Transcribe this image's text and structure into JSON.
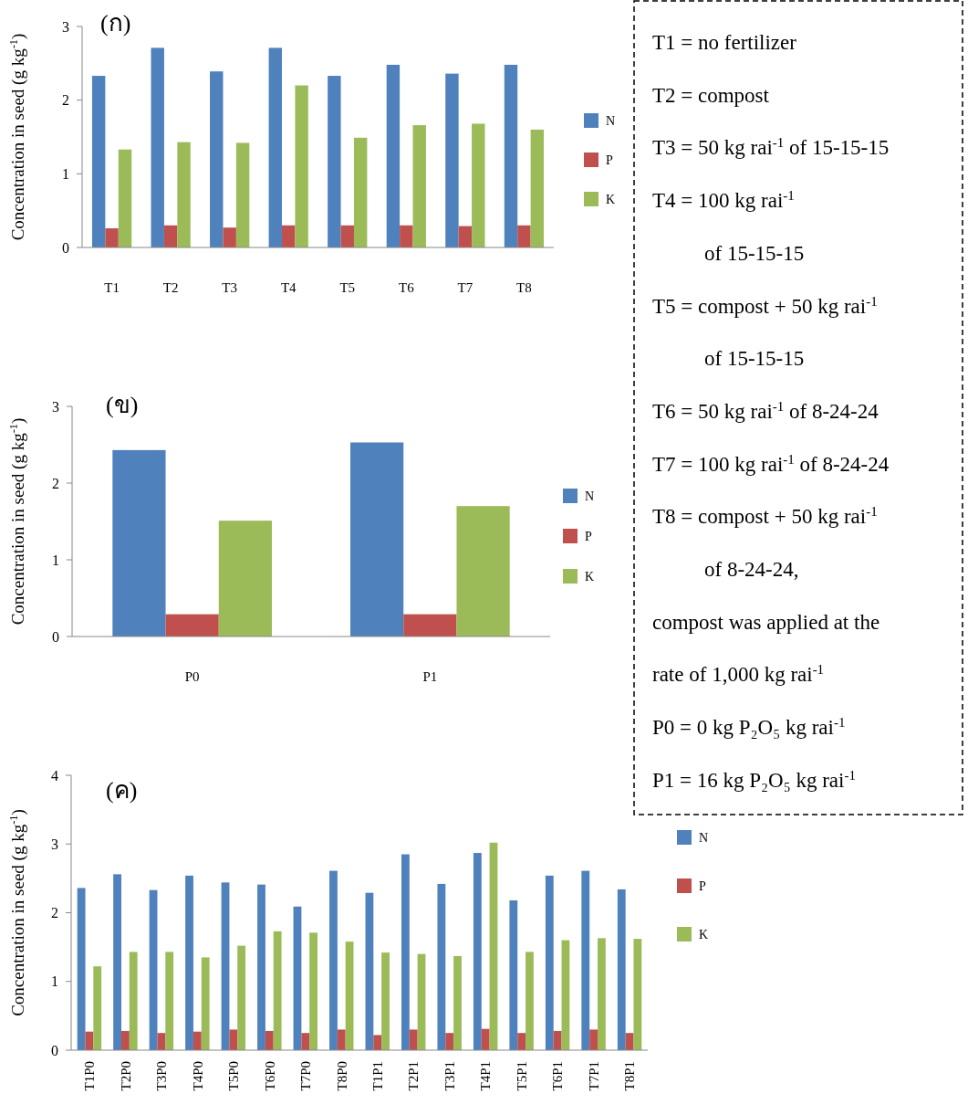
{
  "chart_data": [
    {
      "type": "bar",
      "title": "(ก)",
      "ylabel": "Concentration in seed (g kg$^{-1}$)",
      "categories": [
        "T1",
        "T2",
        "T3",
        "T4",
        "T5",
        "T6",
        "T7",
        "T8"
      ],
      "series": [
        {
          "name": "N",
          "color": "#4f81bd",
          "values": [
            2.33,
            2.71,
            2.39,
            2.71,
            2.33,
            2.48,
            2.36,
            2.48
          ]
        },
        {
          "name": "P",
          "color": "#c0504d",
          "values": [
            0.26,
            0.3,
            0.27,
            0.3,
            0.3,
            0.3,
            0.29,
            0.3
          ]
        },
        {
          "name": "K",
          "color": "#9bbb59",
          "values": [
            1.33,
            1.43,
            1.42,
            2.2,
            1.49,
            1.66,
            1.68,
            1.6
          ]
        }
      ],
      "ylim": [
        0,
        3
      ],
      "yticks": [
        0,
        1,
        2,
        3
      ],
      "grid": false,
      "legend": "right"
    },
    {
      "type": "bar",
      "title": "(ข)",
      "ylabel": "Concentration in seed (g kg$^{-1}$)",
      "categories": [
        "P0",
        "P1"
      ],
      "series": [
        {
          "name": "N",
          "color": "#4f81bd",
          "values": [
            2.43,
            2.53
          ]
        },
        {
          "name": "P",
          "color": "#c0504d",
          "values": [
            0.29,
            0.29
          ]
        },
        {
          "name": "K",
          "color": "#9bbb59",
          "values": [
            1.51,
            1.7
          ]
        }
      ],
      "ylim": [
        0,
        3
      ],
      "yticks": [
        0,
        1,
        2,
        3
      ],
      "grid": false,
      "legend": "right"
    },
    {
      "type": "bar",
      "title": "(ค)",
      "ylabel": "Concentration in seed (g kg$^{-1}$)",
      "categories": [
        "T1P0",
        "T2P0",
        "T3P0",
        "T4P0",
        "T5P0",
        "T6P0",
        "T7P0",
        "T8P0",
        "T1P1",
        "T2P1",
        "T3P1",
        "T4P1",
        "T5P1",
        "T6P1",
        "T7P1",
        "T8P1"
      ],
      "series": [
        {
          "name": "N",
          "color": "#4f81bd",
          "values": [
            2.36,
            2.56,
            2.33,
            2.54,
            2.44,
            2.41,
            2.09,
            2.61,
            2.29,
            2.85,
            2.42,
            2.87,
            2.18,
            2.54,
            2.61,
            2.34
          ]
        },
        {
          "name": "P",
          "color": "#c0504d",
          "values": [
            0.27,
            0.28,
            0.25,
            0.27,
            0.3,
            0.28,
            0.25,
            0.3,
            0.22,
            0.3,
            0.25,
            0.31,
            0.25,
            0.28,
            0.3,
            0.25
          ]
        },
        {
          "name": "K",
          "color": "#9bbb59",
          "values": [
            1.22,
            1.43,
            1.43,
            1.35,
            1.52,
            1.73,
            1.71,
            1.58,
            1.42,
            1.4,
            1.37,
            3.02,
            1.43,
            1.6,
            1.63,
            1.62
          ]
        }
      ],
      "ylim": [
        0,
        4
      ],
      "yticks": [
        0,
        1,
        2,
        3,
        4
      ],
      "grid": false,
      "legend": "right"
    },
    {
      "type": "other",
      "annotations": [
        "T1 = no fertilizer",
        "T2 = compost",
        "T3 = 50 kg rai$^{-1}$ of 15-15-15",
        "T4 = 100 kg rai$^{-1}$",
        "of 15-15-15",
        "T5 = compost + 50 kg rai$^{-1}$",
        "of 15-15-15",
        "T6 = 50 kg rai$^{-1}$ of 8-24-24",
        "T7 = 100 kg rai$^{-1}$ of 8-24-24",
        "T8 = compost + 50 kg rai$^{-1}$",
        "of 8-24-24,",
        "compost was applied at the",
        "rate of 1,000 kg rai$^{-1}$",
        "P0 = 0 kg P₂O₅ kg rai$^{-1}$",
        "P1 = 16 kg P₂O₅ kg rai$^{-1}$"
      ]
    }
  ]
}
